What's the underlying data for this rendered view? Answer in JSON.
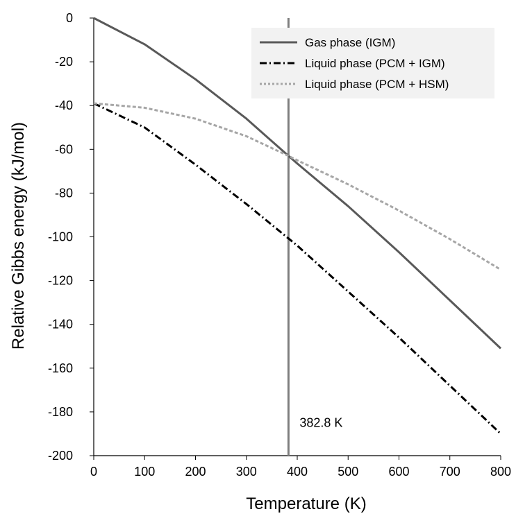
{
  "chart_data": {
    "type": "line",
    "xlabel": "Temperature (K)",
    "ylabel": "Relative Gibbs energy (kJ/mol)",
    "xlim": [
      0,
      800
    ],
    "ylim": [
      -200,
      0
    ],
    "x_ticks": [
      0,
      100,
      200,
      300,
      400,
      500,
      600,
      700,
      800
    ],
    "y_ticks": [
      0,
      -20,
      -40,
      -60,
      -80,
      -100,
      -120,
      -140,
      -160,
      -180,
      -200
    ],
    "grid": false,
    "legend_position": "top-right",
    "series": [
      {
        "name": "Gas phase (IGM)",
        "color": "#595959",
        "dash": "solid",
        "x": [
          0,
          100,
          200,
          300,
          382.8,
          400,
          500,
          600,
          700,
          800
        ],
        "y": [
          0,
          -12,
          -28,
          -46,
          -63,
          -66.5,
          -86,
          -107,
          -129,
          -151
        ]
      },
      {
        "name": "Liquid phase (PCM + IGM)",
        "color": "#000000",
        "dash": "dashdot",
        "x": [
          0,
          100,
          200,
          300,
          400,
          500,
          600,
          700,
          800
        ],
        "y": [
          -39,
          -50,
          -67,
          -85,
          -104,
          -125,
          -146,
          -168,
          -190
        ]
      },
      {
        "name": "Liquid phase (PCM + HSM)",
        "color": "#a6a6a6",
        "dash": "dotted",
        "x": [
          0,
          100,
          200,
          300,
          382.8,
          400,
          500,
          600,
          700,
          800
        ],
        "y": [
          -39,
          -41,
          -46,
          -54,
          -63,
          -65,
          -76,
          -88,
          -101,
          -115
        ]
      }
    ],
    "vertical_line": {
      "x": 382.8,
      "color": "#7f7f7f"
    },
    "annotation": {
      "text": "382.8 K",
      "x": 382.8,
      "y": -185
    }
  }
}
